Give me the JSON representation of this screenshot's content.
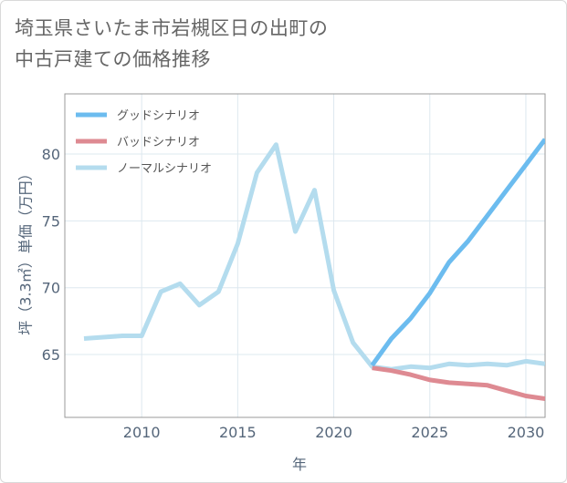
{
  "title_line1": "埼玉県さいたま市岩槻区日の出町の",
  "title_line2": "中古戸建ての価格推移",
  "chart_data": {
    "type": "line",
    "xlabel": "年",
    "ylabel": "坪（3.3㎡）単価（万円）",
    "xlim": [
      2006,
      2031
    ],
    "ylim": [
      60.3,
      84.5
    ],
    "xticks": [
      2010,
      2015,
      2020,
      2025,
      2030
    ],
    "yticks": [
      65,
      70,
      75,
      80
    ],
    "grid": true,
    "legend_position": "top-left",
    "series": [
      {
        "name": "グッドシナリオ",
        "color": "#6cbcef",
        "x": [
          2022,
          2023,
          2024,
          2025,
          2026,
          2027,
          2028,
          2029,
          2030,
          2031
        ],
        "values": [
          64.2,
          66.2,
          67.7,
          69.6,
          71.9,
          73.5,
          75.4,
          77.3,
          79.2,
          81.1
        ]
      },
      {
        "name": "バッドシナリオ",
        "color": "#de8a92",
        "x": [
          2022,
          2023,
          2024,
          2025,
          2026,
          2027,
          2028,
          2029,
          2030,
          2031
        ],
        "values": [
          64.0,
          63.8,
          63.5,
          63.1,
          62.9,
          62.8,
          62.7,
          62.3,
          61.9,
          61.7
        ]
      },
      {
        "name": "ノーマルシナリオ",
        "color": "#b4dcee",
        "x": [
          2007,
          2008,
          2009,
          2010,
          2011,
          2012,
          2013,
          2014,
          2015,
          2016,
          2017,
          2018,
          2019,
          2020,
          2021,
          2022,
          2023,
          2024,
          2025,
          2026,
          2027,
          2028,
          2029,
          2030,
          2031
        ],
        "values": [
          66.2,
          66.3,
          66.4,
          66.4,
          69.7,
          70.3,
          68.7,
          69.7,
          73.3,
          78.6,
          80.7,
          74.2,
          77.3,
          69.8,
          65.9,
          64.1,
          63.9,
          64.1,
          64.0,
          64.3,
          64.2,
          64.3,
          64.2,
          64.5,
          64.3
        ]
      }
    ]
  }
}
